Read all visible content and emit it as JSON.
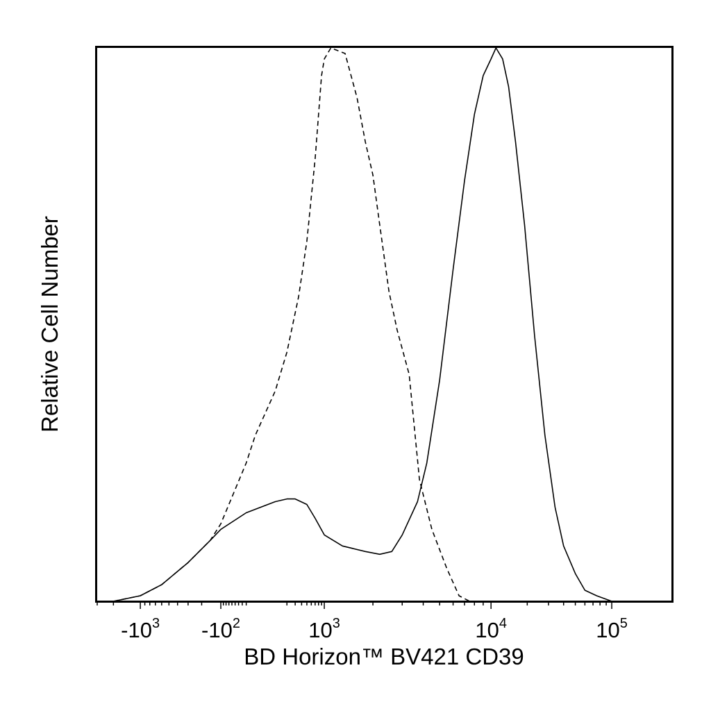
{
  "chart_data": {
    "type": "line",
    "title": "",
    "xlabel": "BD Horizon™ BV421 CD39",
    "ylabel": "Relative Cell Number",
    "x_scale": "biexponential",
    "xlim": [
      -3000,
      200000
    ],
    "ylim": [
      0,
      100
    ],
    "grid": false,
    "legend": "none",
    "x_ticks": [
      {
        "value": -1000,
        "base": "-10",
        "exp": "3"
      },
      {
        "value": -100,
        "base": "-10",
        "exp": "2"
      },
      {
        "value": 1000,
        "base": "10",
        "exp": "3"
      },
      {
        "value": 10000,
        "base": "10",
        "exp": "4"
      },
      {
        "value": 100000,
        "base": "10",
        "exp": "5"
      }
    ],
    "series": [
      {
        "line_style": "dashed",
        "color": "#000000",
        "points": [
          [
            -2000,
            0
          ],
          [
            -1000,
            1
          ],
          [
            -600,
            3
          ],
          [
            -300,
            7
          ],
          [
            -150,
            11
          ],
          [
            -100,
            14
          ],
          [
            -20,
            25
          ],
          [
            0,
            30
          ],
          [
            100,
            38
          ],
          [
            200,
            45
          ],
          [
            350,
            55
          ],
          [
            500,
            65
          ],
          [
            700,
            80
          ],
          [
            900,
            95
          ],
          [
            1000,
            98
          ],
          [
            1100,
            100
          ],
          [
            1350,
            99
          ],
          [
            1600,
            91
          ],
          [
            1800,
            83
          ],
          [
            2000,
            77
          ],
          [
            2200,
            68
          ],
          [
            2500,
            56
          ],
          [
            2800,
            49
          ],
          [
            3300,
            41
          ],
          [
            3800,
            22
          ],
          [
            4500,
            13
          ],
          [
            5500,
            6
          ],
          [
            6500,
            1
          ],
          [
            7500,
            0
          ],
          [
            10000,
            0
          ],
          [
            20000,
            0
          ]
        ]
      },
      {
        "line_style": "solid",
        "color": "#000000",
        "points": [
          [
            -2000,
            0
          ],
          [
            -1000,
            1
          ],
          [
            -600,
            3
          ],
          [
            -300,
            7
          ],
          [
            -150,
            11
          ],
          [
            -100,
            13
          ],
          [
            -20,
            16
          ],
          [
            100,
            18
          ],
          [
            200,
            18.5
          ],
          [
            300,
            18.5
          ],
          [
            500,
            17.5
          ],
          [
            700,
            15
          ],
          [
            1000,
            12
          ],
          [
            1300,
            10
          ],
          [
            1800,
            9
          ],
          [
            2200,
            8.5
          ],
          [
            2600,
            9
          ],
          [
            3000,
            12
          ],
          [
            3700,
            18
          ],
          [
            4200,
            25
          ],
          [
            5000,
            40
          ],
          [
            6000,
            60
          ],
          [
            7000,
            76
          ],
          [
            8000,
            88
          ],
          [
            9000,
            95
          ],
          [
            10000,
            98
          ],
          [
            11000,
            100
          ],
          [
            12500,
            98
          ],
          [
            14000,
            93
          ],
          [
            16000,
            83
          ],
          [
            19000,
            68
          ],
          [
            23000,
            48
          ],
          [
            28000,
            30
          ],
          [
            34000,
            17
          ],
          [
            40000,
            10
          ],
          [
            50000,
            5
          ],
          [
            60000,
            2
          ],
          [
            75000,
            1
          ],
          [
            100000,
            0
          ],
          [
            140000,
            0
          ]
        ]
      }
    ]
  }
}
